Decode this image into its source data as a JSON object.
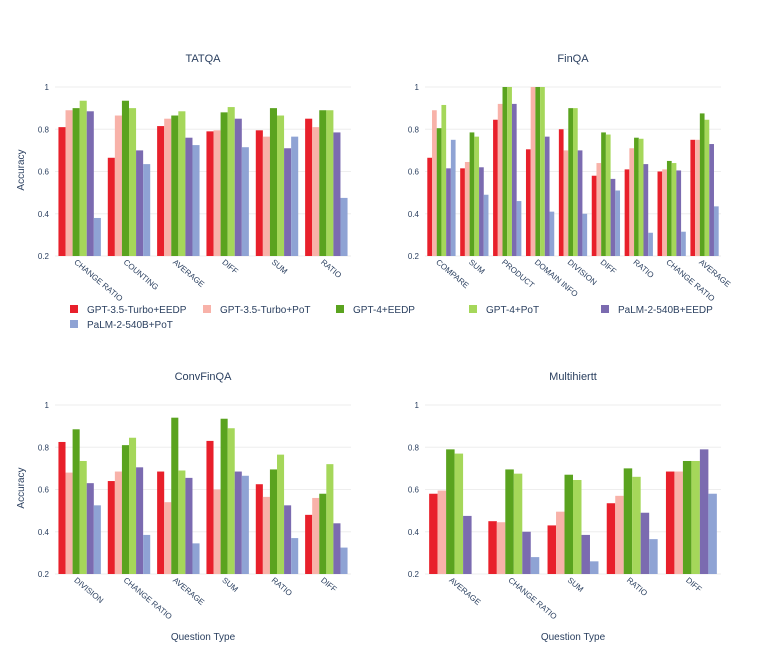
{
  "x_axis_label": "Question Type",
  "y_axis_label": "Accuracy",
  "colors": [
    "#e8202b",
    "#f8b2a9",
    "#5aa31f",
    "#a5d75a",
    "#7b6bb0",
    "#8fa3d4"
  ],
  "legend": {
    "items": [
      "GPT-3.5-Turbo+EEDP",
      "GPT-3.5-Turbo+PoT",
      "GPT-4+EEDP",
      "GPT-4+PoT",
      "PaLM-2-540B+EEDP",
      "PaLM-2-540B+PoT"
    ]
  },
  "chart_data": [
    {
      "type": "bar",
      "title": "TATQA",
      "ylim": [
        0.2,
        1.0
      ],
      "yticks": [
        "0.2",
        "0.4",
        "0.6",
        "0.8",
        "1"
      ],
      "categories": [
        "CHANGE RATIO",
        "COUNTING",
        "AVERAGE",
        "DIFF",
        "SUM",
        "RATIO"
      ],
      "series": [
        {
          "name": "GPT-3.5-Turbo+EEDP",
          "values": [
            0.81,
            0.665,
            0.815,
            0.79,
            0.795,
            0.85
          ]
        },
        {
          "name": "GPT-3.5-Turbo+PoT",
          "values": [
            0.89,
            0.865,
            0.85,
            0.795,
            0.765,
            0.81
          ]
        },
        {
          "name": "GPT-4+EEDP",
          "values": [
            0.9,
            0.935,
            0.865,
            0.88,
            0.9,
            0.89
          ]
        },
        {
          "name": "GPT-4+PoT",
          "values": [
            0.935,
            0.9,
            0.885,
            0.905,
            0.865,
            0.89
          ]
        },
        {
          "name": "PaLM-2-540B+EEDP",
          "values": [
            0.885,
            0.7,
            0.76,
            0.85,
            0.71,
            0.785
          ]
        },
        {
          "name": "PaLM-2-540B+PoT",
          "values": [
            0.38,
            0.635,
            0.725,
            0.715,
            0.765,
            0.475
          ]
        }
      ]
    },
    {
      "type": "bar",
      "title": "FinQA",
      "ylim": [
        0.2,
        1.0
      ],
      "yticks": [
        "0.2",
        "0.4",
        "0.6",
        "0.8",
        "1"
      ],
      "categories": [
        "COMPARE",
        "SUM",
        "PRODUCT",
        "DOMAIN INFO",
        "DIVISION",
        "DIFF",
        "RATIO",
        "CHANGE RATIO",
        "AVERAGE"
      ],
      "series": [
        {
          "name": "GPT-3.5-Turbo+EEDP",
          "values": [
            0.665,
            0.615,
            0.845,
            0.705,
            0.8,
            0.58,
            0.61,
            0.6,
            0.75
          ]
        },
        {
          "name": "GPT-3.5-Turbo+PoT",
          "values": [
            0.89,
            0.645,
            0.92,
            1.0,
            0.7,
            0.64,
            0.71,
            0.61,
            0.75
          ]
        },
        {
          "name": "GPT-4+EEDP",
          "values": [
            0.805,
            0.785,
            1.0,
            1.0,
            0.9,
            0.785,
            0.76,
            0.65,
            0.875
          ]
        },
        {
          "name": "GPT-4+PoT",
          "values": [
            0.915,
            0.765,
            1.0,
            1.0,
            0.9,
            0.775,
            0.755,
            0.64,
            0.845
          ]
        },
        {
          "name": "PaLM-2-540B+EEDP",
          "values": [
            0.615,
            0.62,
            0.92,
            0.765,
            0.7,
            0.565,
            0.635,
            0.605,
            0.73
          ]
        },
        {
          "name": "PaLM-2-540B+PoT",
          "values": [
            0.75,
            0.49,
            0.46,
            0.41,
            0.4,
            0.51,
            0.31,
            0.315,
            0.435
          ]
        }
      ]
    },
    {
      "type": "bar",
      "title": "ConvFinQA",
      "ylim": [
        0.2,
        1.0
      ],
      "yticks": [
        "0.2",
        "0.4",
        "0.6",
        "0.8",
        "1"
      ],
      "categories": [
        "DIVISION",
        "CHANGE RATIO",
        "AVERAGE",
        "SUM",
        "RATIO",
        "DIFF"
      ],
      "series": [
        {
          "name": "GPT-3.5-Turbo+EEDP",
          "values": [
            0.825,
            0.64,
            0.685,
            0.83,
            0.625,
            0.48
          ]
        },
        {
          "name": "GPT-3.5-Turbo+PoT",
          "values": [
            0.68,
            0.685,
            0.54,
            0.6,
            0.565,
            0.56
          ]
        },
        {
          "name": "GPT-4+EEDP",
          "values": [
            0.885,
            0.81,
            0.94,
            0.935,
            0.695,
            0.58
          ]
        },
        {
          "name": "GPT-4+PoT",
          "values": [
            0.735,
            0.845,
            0.69,
            0.89,
            0.765,
            0.72
          ]
        },
        {
          "name": "PaLM-2-540B+EEDP",
          "values": [
            0.63,
            0.705,
            0.655,
            0.685,
            0.525,
            0.44
          ]
        },
        {
          "name": "PaLM-2-540B+PoT",
          "values": [
            0.525,
            0.385,
            0.345,
            0.665,
            0.37,
            0.325
          ]
        }
      ]
    },
    {
      "type": "bar",
      "title": "Multihiertt",
      "ylim": [
        0.2,
        1.0
      ],
      "yticks": [
        "0.2",
        "0.4",
        "0.6",
        "0.8",
        "1"
      ],
      "categories": [
        "AVERAGE",
        "CHANGE RATIO",
        "SUM",
        "RATIO",
        "DIFF"
      ],
      "series": [
        {
          "name": "GPT-3.5-Turbo+EEDP",
          "values": [
            0.58,
            0.45,
            0.43,
            0.535,
            0.685
          ]
        },
        {
          "name": "GPT-3.5-Turbo+PoT",
          "values": [
            0.595,
            0.445,
            0.495,
            0.57,
            0.685
          ]
        },
        {
          "name": "GPT-4+EEDP",
          "values": [
            0.79,
            0.695,
            0.67,
            0.7,
            0.735
          ]
        },
        {
          "name": "GPT-4+PoT",
          "values": [
            0.77,
            0.675,
            0.645,
            0.66,
            0.735
          ]
        },
        {
          "name": "PaLM-2-540B+EEDP",
          "values": [
            0.475,
            0.4,
            0.385,
            0.49,
            0.79
          ]
        },
        {
          "name": "PaLM-2-540B+PoT",
          "values": [
            0.2,
            0.28,
            0.26,
            0.365,
            0.58
          ]
        }
      ]
    }
  ]
}
